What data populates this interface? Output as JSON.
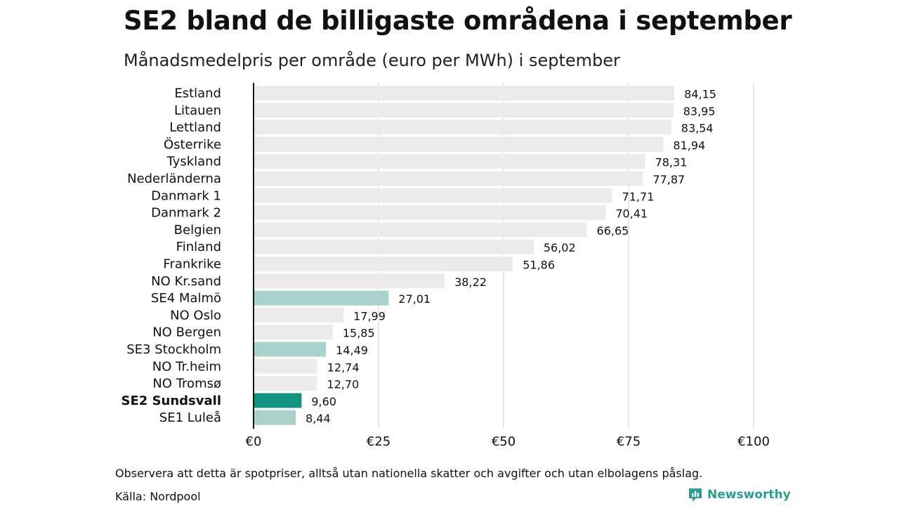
{
  "title": "SE2 bland de billigaste områdena i september",
  "subtitle": "Månadsmedelpris per område (euro per MWh) i september",
  "note": "Observera att detta är spotpriser, alltså utan nationella skatter och avgifter och utan elbolagens påslag.",
  "source": "Källa: Nordpool",
  "brand": "Newsworthy",
  "colors": {
    "default_bar": "#ebebeb",
    "swedish_bar": "#a8d2cb",
    "highlight_bar": "#139281",
    "axis": "#111111",
    "grid": "#d0d0d0",
    "brand": "#2a9d8f"
  },
  "chart_data": {
    "type": "bar",
    "orientation": "horizontal",
    "categories": [
      "Estland",
      "Litauen",
      "Lettland",
      "Österrike",
      "Tyskland",
      "Nederländerna",
      "Danmark 1",
      "Danmark 2",
      "Belgien",
      "Finland",
      "Frankrike",
      "NO Kr.sand",
      "SE4 Malmö",
      "NO Oslo",
      "NO Bergen",
      "SE3 Stockholm",
      "NO Tr.heim",
      "NO Tromsø",
      "SE2 Sundsvall",
      "SE1 Luleå"
    ],
    "values": [
      84.15,
      83.95,
      83.54,
      81.94,
      78.31,
      77.87,
      71.71,
      70.41,
      66.65,
      56.02,
      51.86,
      38.22,
      27.01,
      17.99,
      15.85,
      14.49,
      12.74,
      12.7,
      9.6,
      8.44
    ],
    "value_labels": [
      "84,15",
      "83,95",
      "83,54",
      "81,94",
      "78,31",
      "77,87",
      "71,71",
      "70,41",
      "66,65",
      "56,02",
      "51,86",
      "38,22",
      "27,01",
      "17,99",
      "15,85",
      "14,49",
      "12,74",
      "12,70",
      "9,60",
      "8,44"
    ],
    "bar_style": [
      "default",
      "default",
      "default",
      "default",
      "default",
      "default",
      "default",
      "default",
      "default",
      "default",
      "default",
      "default",
      "swedish",
      "default",
      "default",
      "swedish",
      "default",
      "default",
      "highlight",
      "swedish"
    ],
    "highlight_category": "SE2 Sundsvall",
    "xlim": [
      0,
      100
    ],
    "x_ticks": [
      0,
      25,
      50,
      75,
      100
    ],
    "x_tick_labels": [
      "€0",
      "€25",
      "€50",
      "€75",
      "€100"
    ],
    "grid": true
  }
}
